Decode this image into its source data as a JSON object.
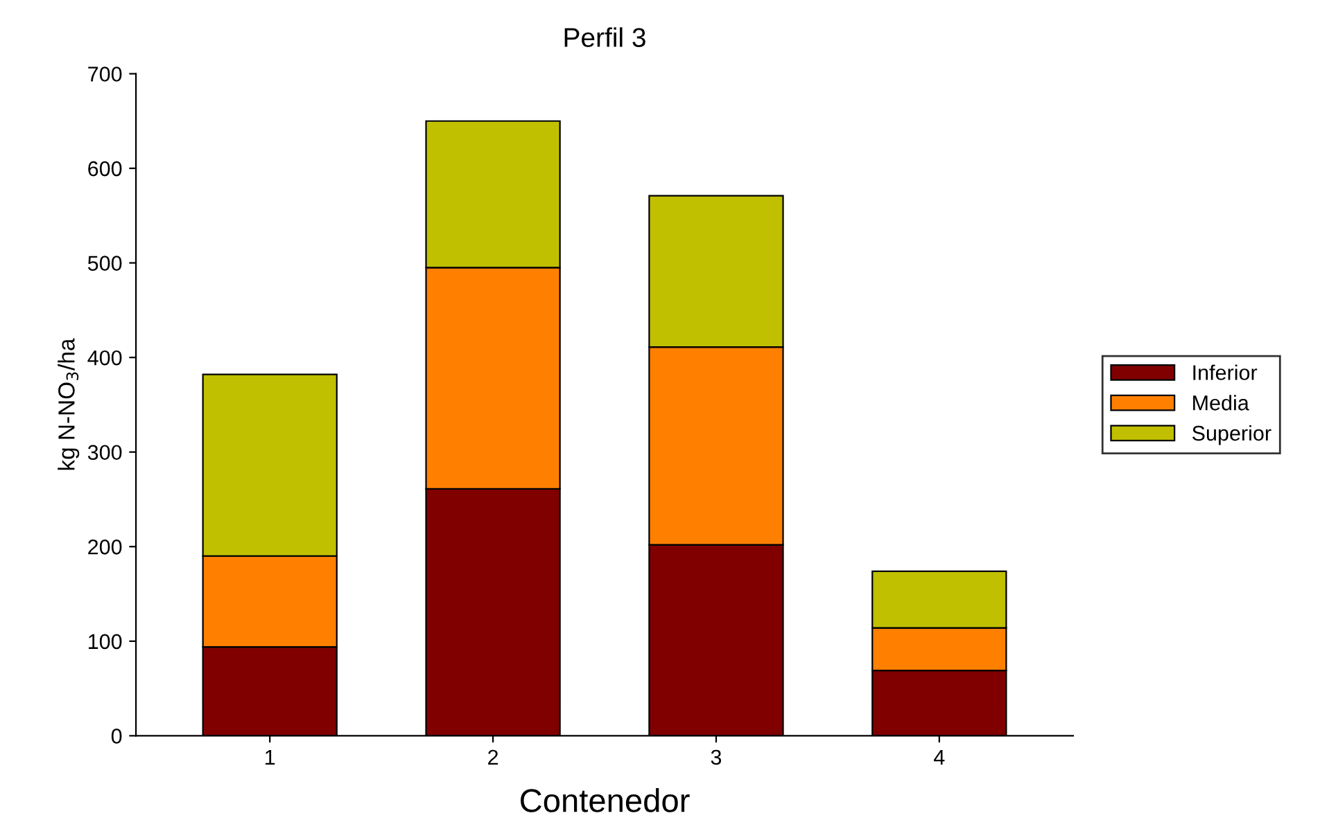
{
  "chart_data": {
    "type": "bar",
    "title": "Perfil 3",
    "xlabel": "Contenedor",
    "ylabel": "kg N-NO$_{3}$/ha",
    "categories": [
      "1",
      "2",
      "3",
      "4"
    ],
    "stacked": true,
    "series": [
      {
        "name": "Inferior",
        "color": "#800000",
        "values": [
          94,
          261,
          202,
          69
        ]
      },
      {
        "name": "Media",
        "color": "#ff8000",
        "values": [
          96,
          234,
          209,
          45
        ]
      },
      {
        "name": "Superior",
        "color": "#c0c000",
        "values": [
          192,
          155,
          160,
          60
        ]
      }
    ],
    "ylim": [
      0,
      700
    ],
    "yticks": [
      0,
      100,
      200,
      300,
      400,
      500,
      600,
      700
    ],
    "grid": false,
    "legend": "right"
  }
}
